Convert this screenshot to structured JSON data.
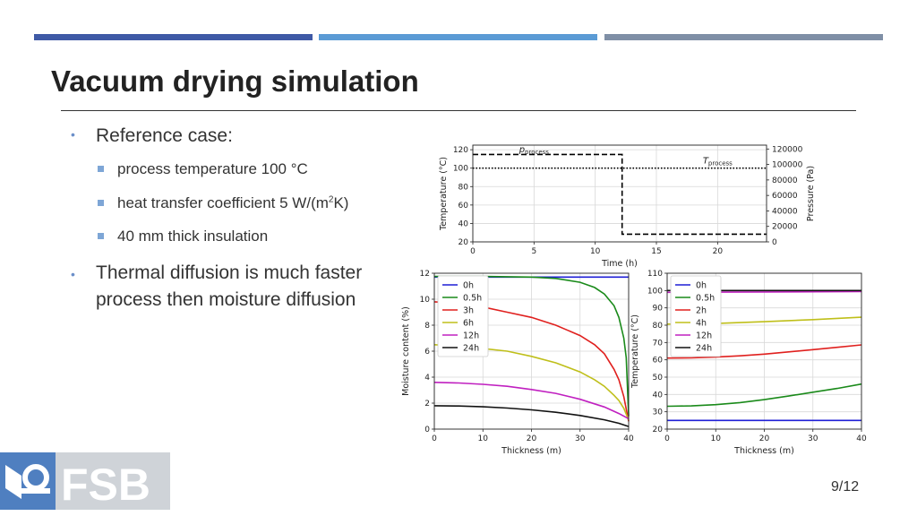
{
  "slide": {
    "title": "Vacuum drying simulation",
    "page": "9/12",
    "colors": {
      "bar1": "#3f5aa6",
      "bar2": "#5b9bd5",
      "bar3": "#7f8fa6",
      "bullet": "#7ea6d6"
    }
  },
  "bullets": [
    {
      "text": "Reference case:",
      "sub": [
        {
          "text": "process temperature 100 °C"
        },
        {
          "pre": "heat transfer coefficient 5 W/(m",
          "sup": "2",
          "post": "K)"
        },
        {
          "text": "40 mm thick insulation"
        }
      ]
    },
    {
      "line1": "Thermal diffusion is much faster",
      "line2": "process then moisture diffusion"
    }
  ],
  "logo": {
    "text": "FSB",
    "icon": "fsb-logo-icon"
  },
  "chart_data": [
    {
      "type": "line",
      "xlabel": "Time (h)",
      "ylabel": "Temperature (°C)",
      "y2label": "Pressure (Pa)",
      "xlim": [
        0,
        24
      ],
      "ylim": [
        20,
        125
      ],
      "y2lim": [
        0,
        125000
      ],
      "xticks": [
        0,
        5,
        10,
        15,
        20
      ],
      "yticks": [
        20,
        40,
        60,
        80,
        100,
        120
      ],
      "y2ticks": [
        0,
        20000,
        40000,
        60000,
        80000,
        100000,
        120000
      ],
      "annotations": [
        {
          "main": "p",
          "sub": "process",
          "x": 5.0,
          "y": 117
        },
        {
          "main": "T",
          "sub": "process",
          "x": 20.0,
          "y": 105
        }
      ],
      "series": [
        {
          "style": "dashed",
          "color": "#000000",
          "axis": "y2",
          "x": [
            0,
            12.2,
            12.2,
            24
          ],
          "values": [
            113000,
            113000,
            10000,
            10000
          ]
        },
        {
          "style": "dotted",
          "color": "#000000",
          "axis": "y",
          "x": [
            0,
            24
          ],
          "values": [
            100,
            100
          ]
        }
      ]
    },
    {
      "type": "line",
      "xlabel": "Thickness (m)",
      "ylabel": "Moisture content (%)",
      "xlim": [
        0,
        40
      ],
      "ylim": [
        0,
        12
      ],
      "xticks": [
        0,
        10,
        20,
        30,
        40
      ],
      "yticks": [
        0,
        2,
        4,
        6,
        8,
        10,
        12
      ],
      "legend": "top-left",
      "series": [
        {
          "name": "0h",
          "color": "#1f1fd6",
          "x": [
            0,
            40
          ],
          "values": [
            11.7,
            11.7
          ]
        },
        {
          "name": "0.5h",
          "color": "#1a8a1a",
          "x": [
            0,
            10,
            20,
            25,
            30,
            33,
            35,
            37,
            38,
            39,
            39.5,
            40
          ],
          "values": [
            11.75,
            11.75,
            11.7,
            11.6,
            11.3,
            10.9,
            10.4,
            9.5,
            8.6,
            7.0,
            5.5,
            1.0
          ]
        },
        {
          "name": "3h",
          "color": "#e0201e",
          "x": [
            0,
            5,
            10,
            15,
            20,
            25,
            30,
            33,
            35,
            37,
            38,
            39,
            40
          ],
          "values": [
            9.8,
            9.7,
            9.4,
            9.0,
            8.6,
            8.0,
            7.2,
            6.5,
            5.8,
            4.6,
            3.8,
            2.5,
            0.6
          ]
        },
        {
          "name": "6h",
          "color": "#bfbf1a",
          "x": [
            0,
            5,
            10,
            15,
            20,
            25,
            30,
            33,
            35,
            37,
            38,
            39,
            40
          ],
          "values": [
            6.5,
            6.4,
            6.2,
            6.0,
            5.6,
            5.1,
            4.4,
            3.8,
            3.3,
            2.6,
            2.2,
            1.6,
            0.7
          ]
        },
        {
          "name": "12h",
          "color": "#c020c0",
          "x": [
            0,
            5,
            10,
            15,
            20,
            25,
            30,
            35,
            38,
            40
          ],
          "values": [
            3.6,
            3.55,
            3.45,
            3.3,
            3.05,
            2.75,
            2.3,
            1.7,
            1.2,
            0.8
          ]
        },
        {
          "name": "24h",
          "color": "#111111",
          "x": [
            0,
            5,
            10,
            15,
            20,
            25,
            30,
            35,
            38,
            40
          ],
          "values": [
            1.8,
            1.78,
            1.72,
            1.62,
            1.48,
            1.3,
            1.05,
            0.72,
            0.45,
            0.2
          ]
        }
      ]
    },
    {
      "type": "line",
      "xlabel": "Thickness (m)",
      "ylabel": "Temperature (°C)",
      "xlim": [
        0,
        40
      ],
      "ylim": [
        20,
        110
      ],
      "xticks": [
        0,
        10,
        20,
        30,
        40
      ],
      "yticks": [
        20,
        30,
        40,
        50,
        60,
        70,
        80,
        90,
        100,
        110
      ],
      "legend": "top-left",
      "series": [
        {
          "name": "0h",
          "color": "#1f1fd6",
          "x": [
            0,
            40
          ],
          "values": [
            25,
            25
          ]
        },
        {
          "name": "0.5h",
          "color": "#1a8a1a",
          "x": [
            0,
            5,
            10,
            15,
            20,
            25,
            30,
            35,
            40
          ],
          "values": [
            33.2,
            33.4,
            34.1,
            35.3,
            37.0,
            39.1,
            41.3,
            43.5,
            46.0
          ]
        },
        {
          "name": "2h",
          "color": "#e0201e",
          "x": [
            0,
            5,
            10,
            15,
            20,
            25,
            30,
            35,
            40
          ],
          "values": [
            61.0,
            61.1,
            61.6,
            62.3,
            63.3,
            64.6,
            65.9,
            67.2,
            68.6
          ]
        },
        {
          "name": "4h",
          "color": "#bfbf1a",
          "x": [
            0,
            10,
            20,
            30,
            40
          ],
          "values": [
            80.6,
            81.0,
            82.0,
            83.2,
            84.6
          ]
        },
        {
          "name": "12h",
          "color": "#c020c0",
          "x": [
            0,
            20,
            40
          ],
          "values": [
            99.0,
            99.2,
            99.4
          ]
        },
        {
          "name": "24h",
          "color": "#111111",
          "x": [
            0,
            40
          ],
          "values": [
            100.0,
            100.0
          ]
        }
      ]
    }
  ]
}
